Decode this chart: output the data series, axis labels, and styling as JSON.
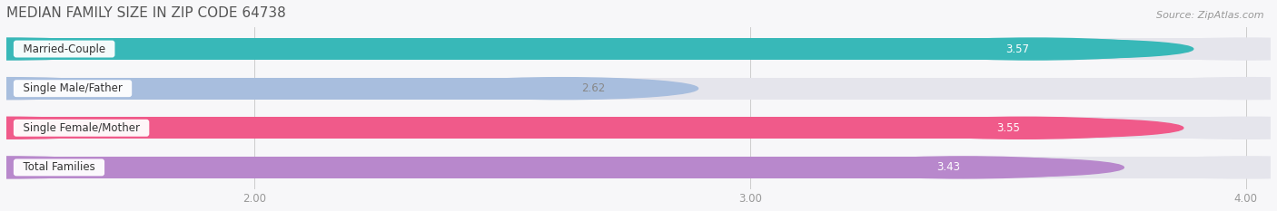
{
  "title": "MEDIAN FAMILY SIZE IN ZIP CODE 64738",
  "source": "Source: ZipAtlas.com",
  "categories": [
    "Married-Couple",
    "Single Male/Father",
    "Single Female/Mother",
    "Total Families"
  ],
  "values": [
    3.57,
    2.62,
    3.55,
    3.43
  ],
  "bar_colors": [
    "#38b8b8",
    "#a8bede",
    "#f05a8a",
    "#b888cc"
  ],
  "bar_bg_color": "#e5e5ec",
  "value_label_colors": [
    "#38b8b8",
    "#a8bede",
    "#f05a8a",
    "#b888cc"
  ],
  "xlim_min": 1.5,
  "xlim_max": 4.05,
  "xticks": [
    2.0,
    3.0,
    4.0
  ],
  "xtick_labels": [
    "2.00",
    "3.00",
    "4.00"
  ],
  "title_fontsize": 11,
  "title_color": "#555555",
  "label_fontsize": 8.5,
  "value_fontsize": 8.5,
  "source_fontsize": 8,
  "source_color": "#999999",
  "background_color": "#f7f7f9",
  "bar_height": 0.55,
  "bar_spacing": 1.0
}
